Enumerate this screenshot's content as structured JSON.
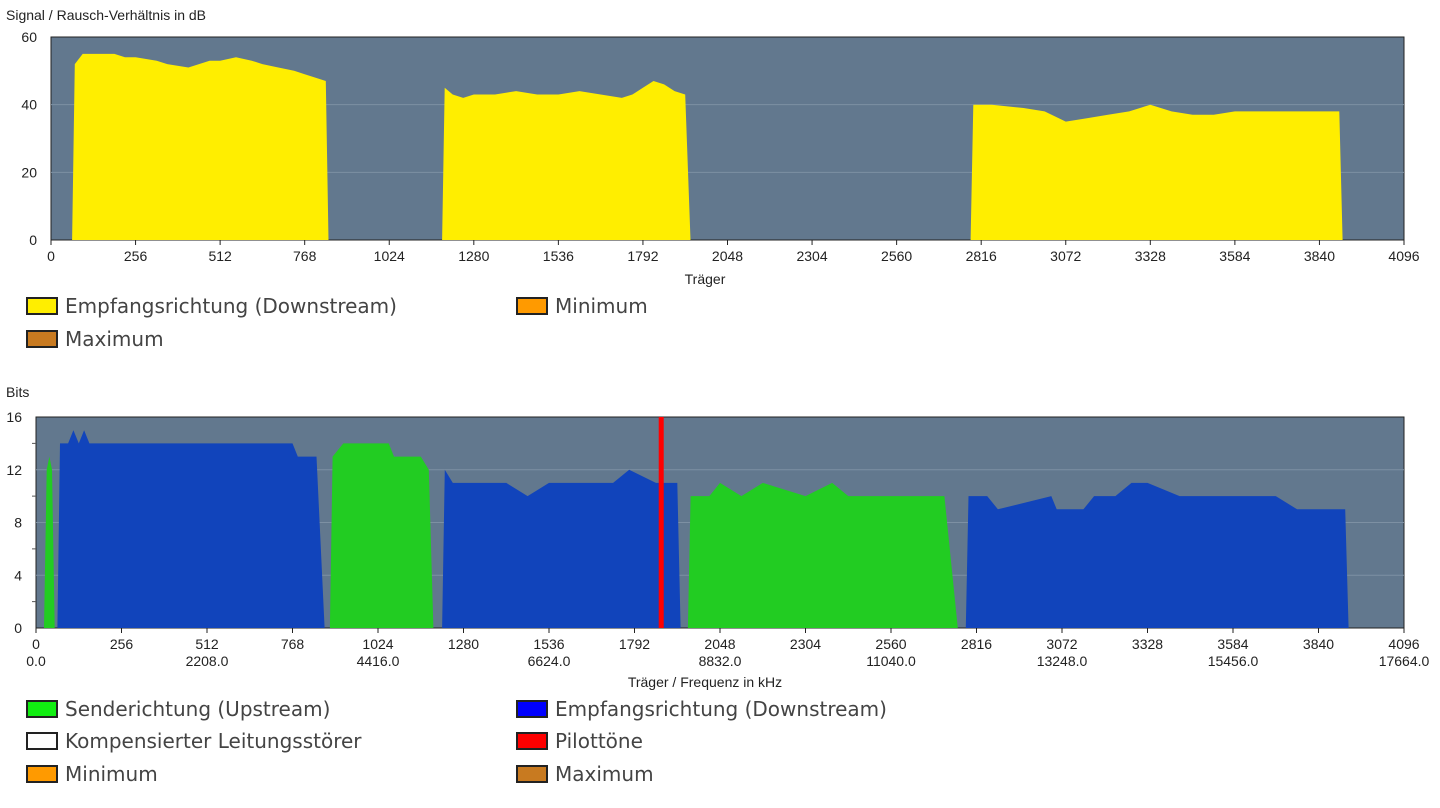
{
  "snr_chart": {
    "ylabel": "Signal / Rausch-Verhältnis in dB",
    "xlabel": "Träger",
    "ylim": [
      0,
      60
    ],
    "yticks": [
      0,
      20,
      40,
      60
    ],
    "xlim": [
      0,
      4096
    ],
    "xticks": [
      0,
      256,
      512,
      768,
      1024,
      1280,
      1536,
      1792,
      2048,
      2304,
      2560,
      2816,
      3072,
      3328,
      3584,
      3840,
      4096
    ],
    "legend": [
      {
        "label": "Empfangsrichtung (Downstream)",
        "color": "#ffee00"
      },
      {
        "label": "Minimum",
        "color": "#ff9a00"
      },
      {
        "label": "Maximum",
        "color": "#c87a20"
      }
    ]
  },
  "bits_chart": {
    "ylabel": "Bits",
    "xlabel": "Träger / Frequenz in kHz",
    "ylim": [
      0,
      16
    ],
    "yticks": [
      0,
      4,
      8,
      12,
      16
    ],
    "xlim": [
      0,
      4096
    ],
    "xticks": [
      0,
      256,
      512,
      768,
      1024,
      1280,
      1536,
      1792,
      2048,
      2304,
      2560,
      2816,
      3072,
      3328,
      3584,
      3840,
      4096
    ],
    "freq_ticks": [
      {
        "carrier": 0,
        "label": "0.0"
      },
      {
        "carrier": 512,
        "label": "2208.0"
      },
      {
        "carrier": 1024,
        "label": "4416.0"
      },
      {
        "carrier": 1536,
        "label": "6624.0"
      },
      {
        "carrier": 2048,
        "label": "8832.0"
      },
      {
        "carrier": 2560,
        "label": "11040.0"
      },
      {
        "carrier": 3072,
        "label": "13248.0"
      },
      {
        "carrier": 3584,
        "label": "15456.0"
      },
      {
        "carrier": 4096,
        "label": "17664.0"
      }
    ],
    "legend": [
      {
        "label": "Senderichtung (Upstream)",
        "color": "#11ee11"
      },
      {
        "label": "Empfangsrichtung (Downstream)",
        "color": "#0000ff"
      },
      {
        "label": "Kompensierter Leitungsstörer",
        "color": "#ffffff"
      },
      {
        "label": "Pilottöne",
        "color": "#ff0000"
      },
      {
        "label": "Minimum",
        "color": "#ff9a00"
      },
      {
        "label": "Maximum",
        "color": "#c87a20"
      }
    ]
  },
  "chart_data": [
    {
      "type": "area",
      "title": "",
      "ylabel": "Signal / Rausch-Verhältnis in dB",
      "xlabel": "Träger",
      "ylim": [
        0,
        60
      ],
      "xlim": [
        0,
        4096
      ],
      "grid": true,
      "legend_position": "bottom",
      "series": [
        {
          "name": "Empfangsrichtung (Downstream)",
          "color": "#ffee00",
          "points": [
            [
              64,
              0
            ],
            [
              72,
              52
            ],
            [
              80,
              53
            ],
            [
              96,
              55
            ],
            [
              128,
              55
            ],
            [
              192,
              55
            ],
            [
              224,
              54
            ],
            [
              256,
              54
            ],
            [
              320,
              53
            ],
            [
              352,
              52
            ],
            [
              416,
              51
            ],
            [
              448,
              52
            ],
            [
              480,
              53
            ],
            [
              512,
              53
            ],
            [
              560,
              54
            ],
            [
              608,
              53
            ],
            [
              640,
              52
            ],
            [
              688,
              51
            ],
            [
              736,
              50
            ],
            [
              768,
              49
            ],
            [
              800,
              48
            ],
            [
              832,
              47
            ],
            [
              840,
              0
            ]
          ]
        },
        {
          "name": "Empfangsrichtung (Downstream)",
          "color": "#ffee00",
          "points": [
            [
              1184,
              0
            ],
            [
              1192,
              45
            ],
            [
              1216,
              43
            ],
            [
              1248,
              42
            ],
            [
              1280,
              43
            ],
            [
              1344,
              43
            ],
            [
              1408,
              44
            ],
            [
              1472,
              43
            ],
            [
              1536,
              43
            ],
            [
              1600,
              44
            ],
            [
              1664,
              43
            ],
            [
              1728,
              42
            ],
            [
              1760,
              43
            ],
            [
              1792,
              45
            ],
            [
              1824,
              47
            ],
            [
              1856,
              46
            ],
            [
              1888,
              44
            ],
            [
              1920,
              43
            ],
            [
              1936,
              0
            ]
          ]
        },
        {
          "name": "Empfangsrichtung (Downstream)",
          "color": "#ffee00",
          "points": [
            [
              2784,
              0
            ],
            [
              2792,
              40
            ],
            [
              2848,
              40
            ],
            [
              2944,
              39
            ],
            [
              3008,
              38
            ],
            [
              3072,
              35
            ],
            [
              3136,
              36
            ],
            [
              3200,
              37
            ],
            [
              3264,
              38
            ],
            [
              3328,
              40
            ],
            [
              3392,
              38
            ],
            [
              3456,
              37
            ],
            [
              3520,
              37
            ],
            [
              3584,
              38
            ],
            [
              3648,
              38
            ],
            [
              3712,
              38
            ],
            [
              3776,
              38
            ],
            [
              3840,
              38
            ],
            [
              3900,
              38
            ],
            [
              3910,
              0
            ]
          ]
        }
      ]
    },
    {
      "type": "area",
      "title": "",
      "ylabel": "Bits",
      "xlabel": "Träger / Frequenz in kHz",
      "ylim": [
        0,
        16
      ],
      "xlim": [
        0,
        4096
      ],
      "grid": true,
      "legend_position": "bottom",
      "series": [
        {
          "name": "Senderichtung (Upstream)",
          "color": "#22cc22",
          "segments": [
            [
              [
                24,
                0
              ],
              [
                32,
                12
              ],
              [
                40,
                13
              ],
              [
                48,
                12
              ],
              [
                56,
                0
              ]
            ],
            [
              [
                880,
                0
              ],
              [
                888,
                13
              ],
              [
                920,
                14
              ],
              [
                1056,
                14
              ],
              [
                1072,
                13
              ],
              [
                1152,
                13
              ],
              [
                1176,
                12
              ],
              [
                1190,
                0
              ]
            ],
            [
              [
                1952,
                0
              ],
              [
                1960,
                10
              ],
              [
                2016,
                10
              ],
              [
                2048,
                11
              ],
              [
                2112,
                10
              ],
              [
                2176,
                11
              ],
              [
                2304,
                10
              ],
              [
                2384,
                11
              ],
              [
                2432,
                10
              ],
              [
                2560,
                10
              ],
              [
                2720,
                10
              ],
              [
                2760,
                0
              ]
            ]
          ]
        },
        {
          "name": "Empfangsrichtung (Downstream)",
          "color": "#1144bb",
          "segments": [
            [
              [
                64,
                0
              ],
              [
                72,
                14
              ],
              [
                96,
                14
              ],
              [
                112,
                15
              ],
              [
                128,
                14
              ],
              [
                144,
                15
              ],
              [
                160,
                14
              ],
              [
                256,
                14
              ],
              [
                512,
                14
              ],
              [
                768,
                14
              ],
              [
                784,
                13
              ],
              [
                816,
                13
              ],
              [
                840,
                13
              ],
              [
                864,
                0
              ]
            ],
            [
              [
                1216,
                0
              ],
              [
                1224,
                12
              ],
              [
                1248,
                11
              ],
              [
                1280,
                11
              ],
              [
                1344,
                11
              ],
              [
                1408,
                11
              ],
              [
                1472,
                10
              ],
              [
                1536,
                11
              ],
              [
                1664,
                11
              ],
              [
                1728,
                11
              ],
              [
                1776,
                12
              ],
              [
                1856,
                11
              ],
              [
                1920,
                11
              ],
              [
                1930,
                0
              ]
            ],
            [
              [
                2784,
                0
              ],
              [
                2792,
                10
              ],
              [
                2848,
                10
              ],
              [
                2880,
                9
              ],
              [
                3040,
                10
              ],
              [
                3056,
                9
              ],
              [
                3136,
                9
              ],
              [
                3168,
                10
              ],
              [
                3232,
                10
              ],
              [
                3280,
                11
              ],
              [
                3328,
                11
              ],
              [
                3424,
                10
              ],
              [
                3456,
                10
              ],
              [
                3584,
                10
              ],
              [
                3712,
                10
              ],
              [
                3776,
                9
              ],
              [
                3920,
                9
              ],
              [
                3930,
                0
              ]
            ]
          ]
        },
        {
          "name": "Pilottöne",
          "color": "#ff0000",
          "type": "marker",
          "x": [
            1872
          ]
        }
      ]
    }
  ]
}
